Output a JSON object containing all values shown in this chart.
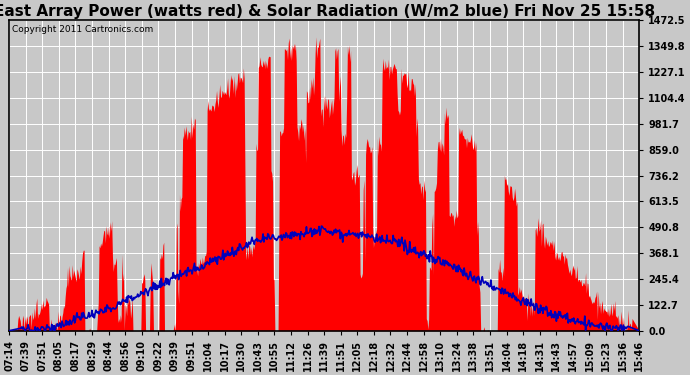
{
  "title": "East Array Power (watts red) & Solar Radiation (W/m2 blue) Fri Nov 25 15:58",
  "copyright_text": "Copyright 2011 Cartronics.com",
  "y_max": 1472.5,
  "y_min": 0.0,
  "y_ticks": [
    0.0,
    122.7,
    245.4,
    368.1,
    490.8,
    613.5,
    736.2,
    859.0,
    981.7,
    1104.4,
    1227.1,
    1349.8,
    1472.5
  ],
  "x_labels": [
    "07:14",
    "07:39",
    "07:51",
    "08:05",
    "08:17",
    "08:29",
    "08:44",
    "08:56",
    "09:10",
    "09:22",
    "09:39",
    "09:51",
    "10:04",
    "10:17",
    "10:30",
    "10:43",
    "10:55",
    "11:12",
    "11:26",
    "11:39",
    "11:51",
    "12:05",
    "12:18",
    "12:32",
    "12:44",
    "12:58",
    "13:10",
    "13:24",
    "13:38",
    "13:51",
    "14:04",
    "14:18",
    "14:31",
    "14:43",
    "14:57",
    "15:09",
    "15:23",
    "15:36",
    "15:46"
  ],
  "background_color": "#c8c8c8",
  "plot_bg_color": "#c8c8c8",
  "red_color": "#ff0000",
  "blue_color": "#0000bb",
  "grid_color": "#ffffff",
  "title_fontsize": 11,
  "tick_fontsize": 7,
  "copyright_fontsize": 6.5,
  "n_points": 800
}
